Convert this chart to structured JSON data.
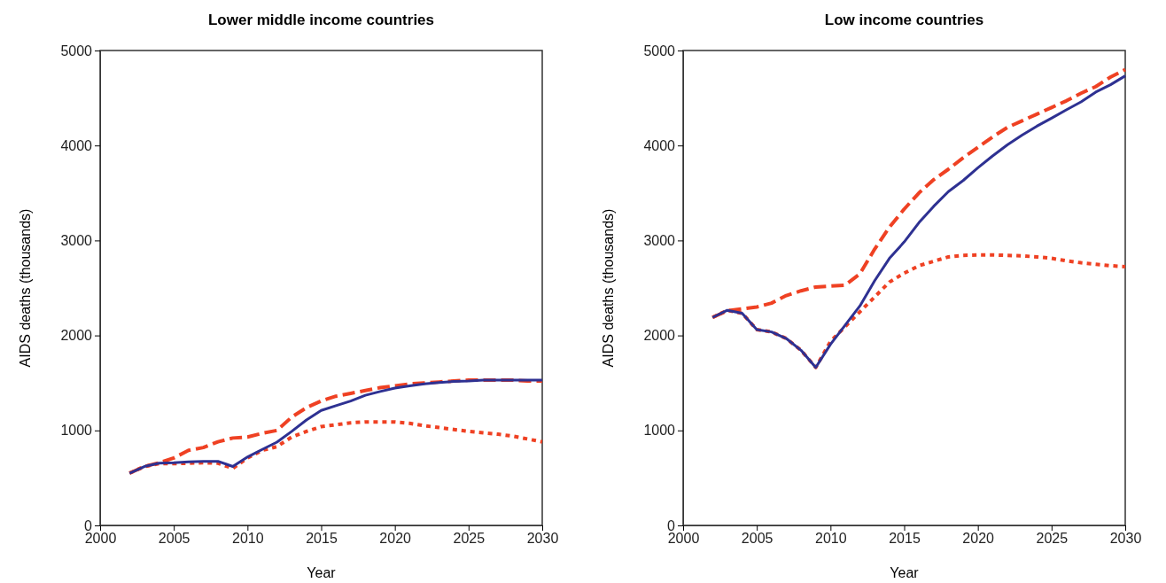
{
  "chart_data": [
    {
      "type": "line",
      "title": "Lower middle income countries",
      "xlabel": "Year",
      "ylabel": "AIDS deaths (thousands)",
      "x": [
        2002,
        2003,
        2004,
        2005,
        2006,
        2007,
        2008,
        2009,
        2010,
        2011,
        2012,
        2013,
        2014,
        2015,
        2016,
        2017,
        2018,
        2019,
        2020,
        2021,
        2022,
        2023,
        2024,
        2025,
        2026,
        2027,
        2028,
        2029,
        2030
      ],
      "xlim": [
        2000,
        2030
      ],
      "xticks": [
        2000,
        2005,
        2010,
        2015,
        2020,
        2025,
        2030
      ],
      "ylim": [
        0,
        5000
      ],
      "yticks": [
        0,
        1000,
        2000,
        3000,
        4000,
        5000
      ],
      "marker": "none",
      "series": [
        {
          "color": "#ef4123",
          "line_style": "dashed",
          "values": [
            550,
            620,
            660,
            710,
            790,
            820,
            880,
            920,
            930,
            970,
            1000,
            1140,
            1240,
            1310,
            1360,
            1390,
            1420,
            1450,
            1470,
            1490,
            1500,
            1510,
            1520,
            1530,
            1530,
            1530,
            1530,
            1520,
            1520
          ]
        },
        {
          "color": "#ef4123",
          "line_style": "dotted",
          "values": [
            550,
            620,
            650,
            650,
            655,
            660,
            655,
            600,
            710,
            790,
            830,
            930,
            990,
            1040,
            1060,
            1080,
            1090,
            1090,
            1090,
            1075,
            1050,
            1030,
            1010,
            990,
            975,
            960,
            940,
            910,
            880
          ]
        },
        {
          "color": "#2e3192",
          "line_style": "solid",
          "values": [
            550,
            620,
            656,
            660,
            670,
            675,
            675,
            620,
            720,
            800,
            877,
            990,
            1110,
            1210,
            1260,
            1310,
            1370,
            1410,
            1446,
            1470,
            1490,
            1505,
            1515,
            1520,
            1530,
            1530,
            1530,
            1530,
            1530
          ]
        }
      ]
    },
    {
      "type": "line",
      "title": "Low income countries",
      "xlabel": "Year",
      "ylabel": "AIDS deaths (thousands)",
      "x": [
        2002,
        2003,
        2004,
        2005,
        2006,
        2007,
        2008,
        2009,
        2010,
        2011,
        2012,
        2013,
        2014,
        2015,
        2016,
        2017,
        2018,
        2019,
        2020,
        2021,
        2022,
        2023,
        2024,
        2025,
        2026,
        2027,
        2028,
        2029,
        2030
      ],
      "xlim": [
        2000,
        2030
      ],
      "xticks": [
        2000,
        2005,
        2010,
        2015,
        2020,
        2025,
        2030
      ],
      "ylim": [
        0,
        5000
      ],
      "yticks": [
        0,
        1000,
        2000,
        3000,
        4000,
        5000
      ],
      "marker": "none",
      "series": [
        {
          "color": "#ef4123",
          "line_style": "dashed",
          "values": [
            2190,
            2260,
            2280,
            2300,
            2340,
            2420,
            2470,
            2510,
            2520,
            2530,
            2650,
            2910,
            3140,
            3330,
            3500,
            3640,
            3750,
            3870,
            3980,
            4090,
            4190,
            4260,
            4330,
            4400,
            4470,
            4550,
            4620,
            4720,
            4800
          ]
        },
        {
          "color": "#ef4123",
          "line_style": "dotted",
          "values": [
            2190,
            2265,
            2234,
            2062,
            2037,
            1968,
            1844,
            1663,
            1937,
            2094,
            2250,
            2406,
            2562,
            2656,
            2734,
            2781,
            2827,
            2843,
            2848,
            2848,
            2843,
            2838,
            2827,
            2812,
            2786,
            2765,
            2750,
            2734,
            2725
          ]
        },
        {
          "color": "#2e3192",
          "line_style": "solid",
          "values": [
            2190,
            2265,
            2234,
            2062,
            2037,
            1968,
            1844,
            1663,
            1906,
            2109,
            2312,
            2577,
            2812,
            2984,
            3187,
            3359,
            3515,
            3631,
            3765,
            3890,
            4006,
            4109,
            4203,
            4287,
            4375,
            4459,
            4562,
            4640,
            4733
          ]
        }
      ]
    }
  ]
}
